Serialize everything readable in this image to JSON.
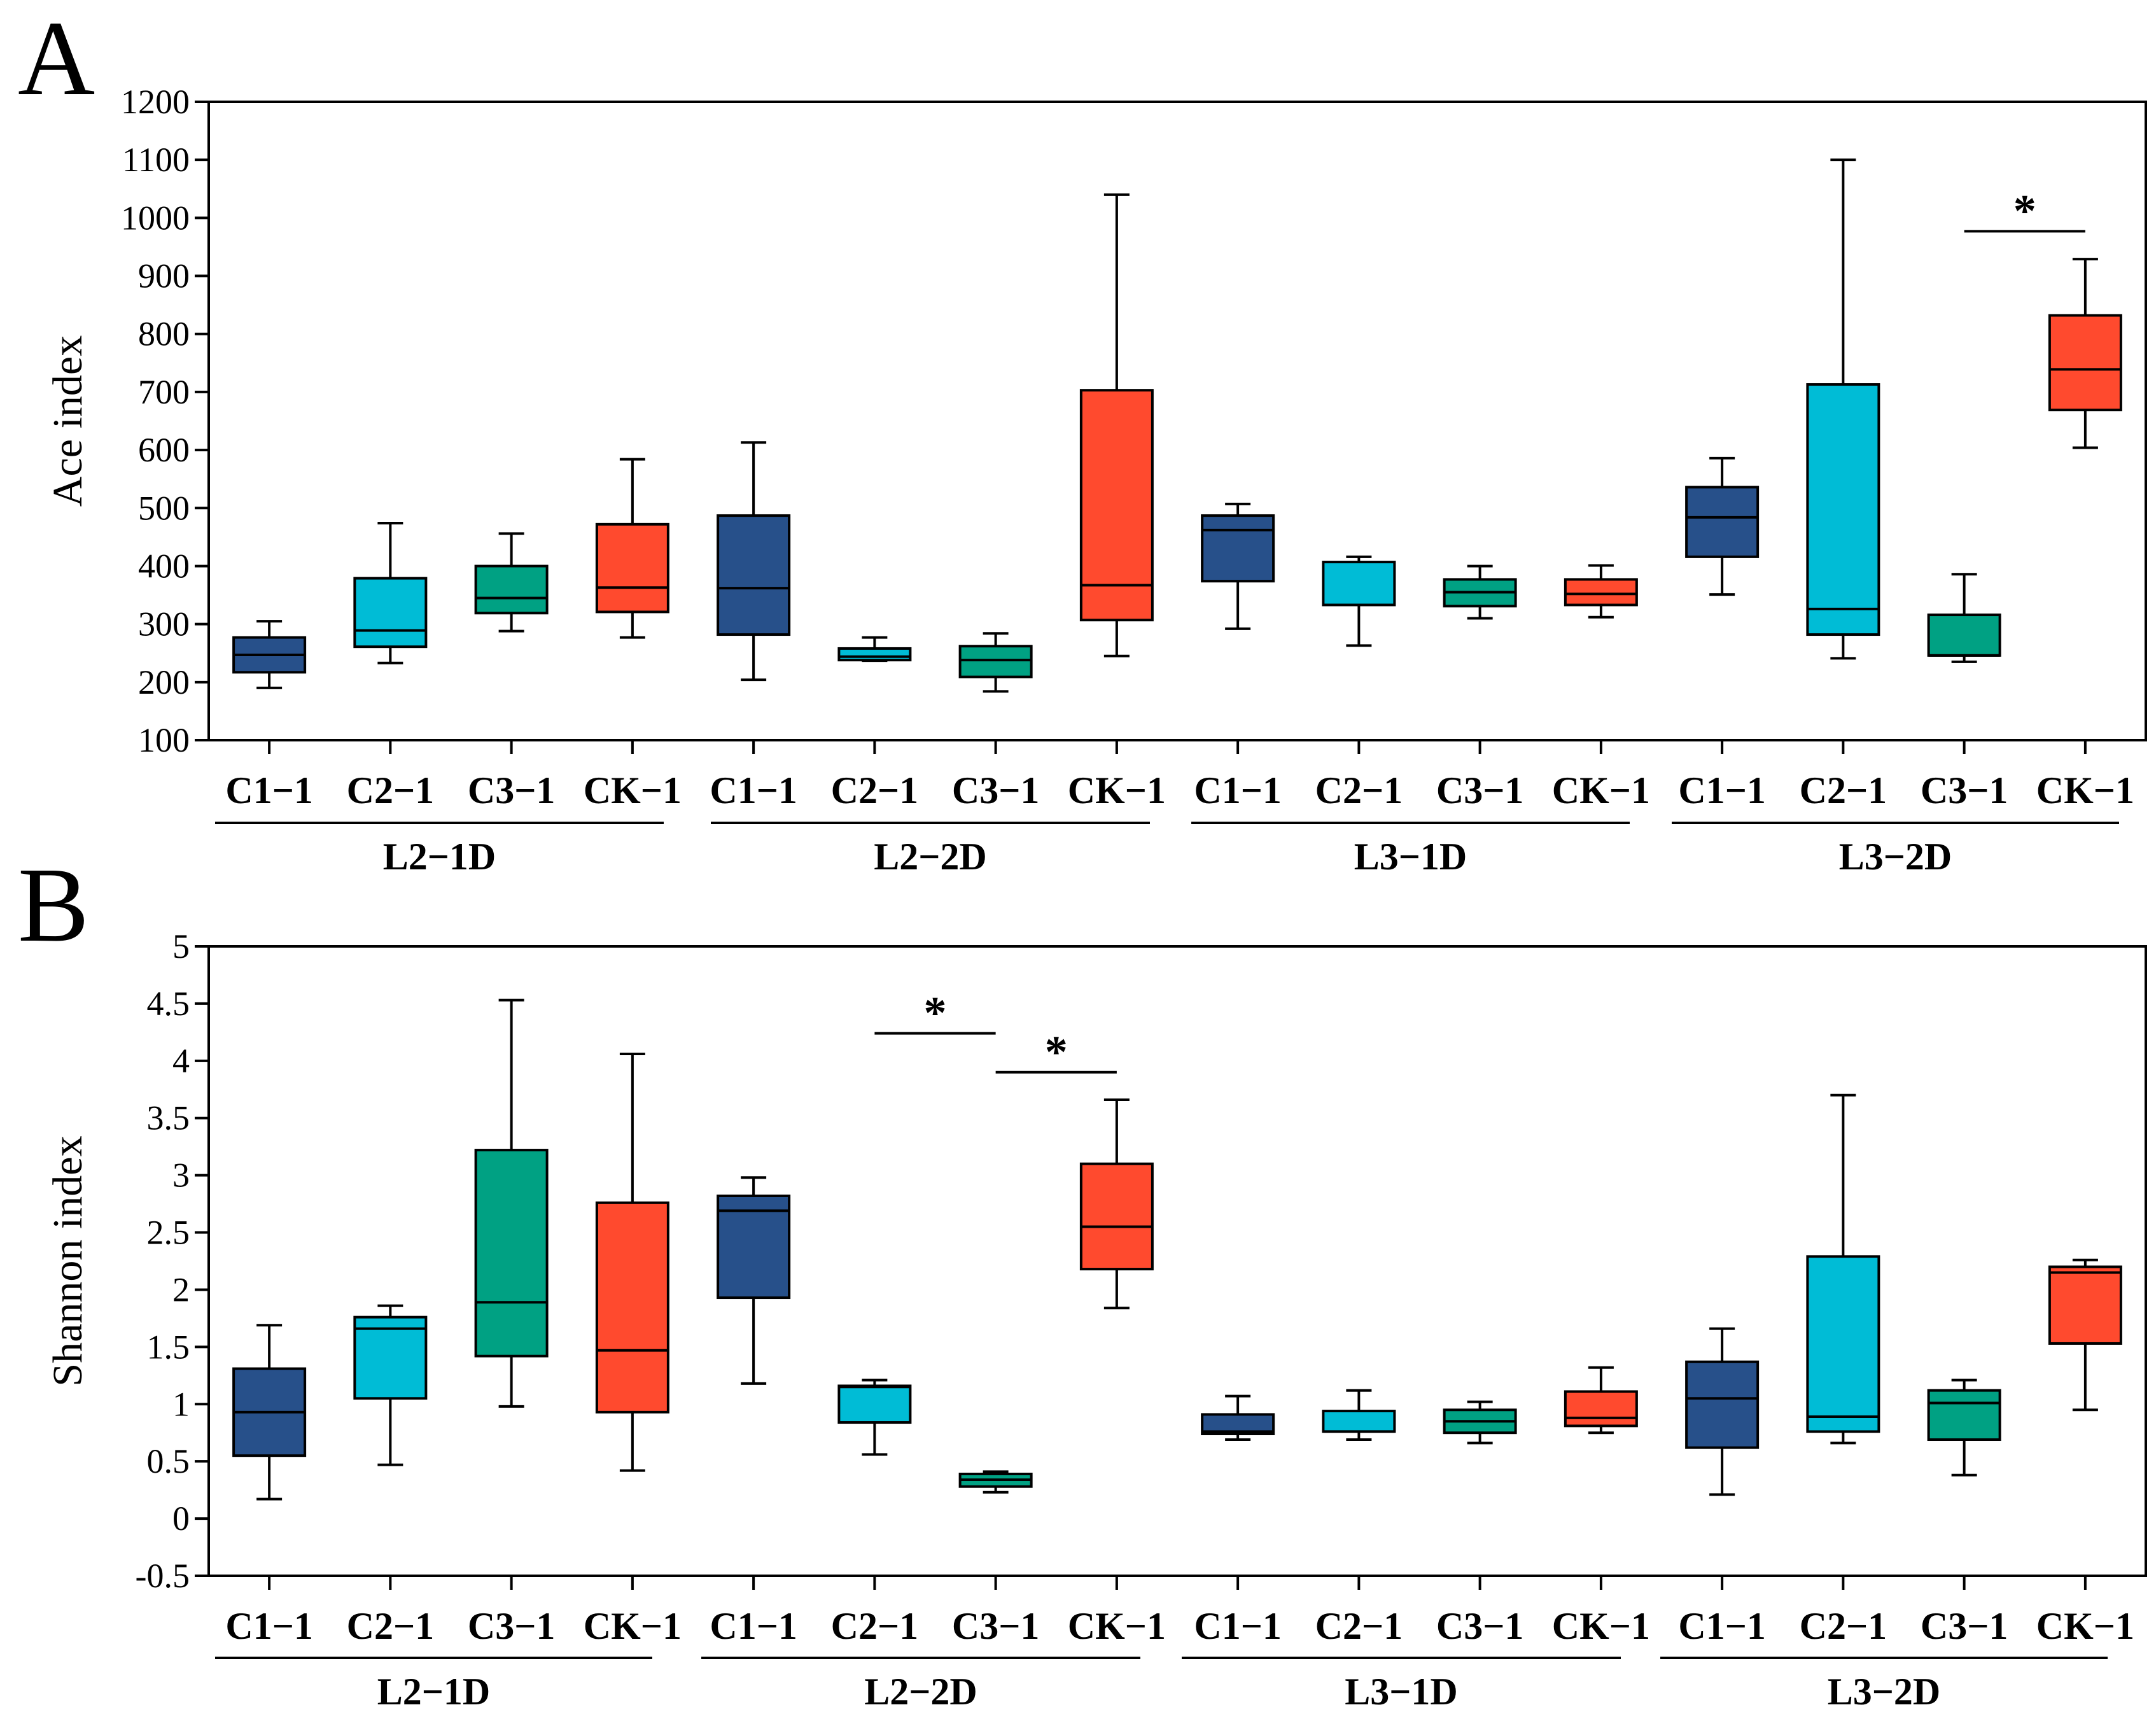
{
  "colors": {
    "C1-1": "#27508a",
    "C2-1": "#00bcd6",
    "C3-1": "#00a183",
    "CK-1": "#ff4a2e",
    "axis": "#000000"
  },
  "chart_data": [
    {
      "type": "boxplot",
      "panel": "A",
      "ylabel": "Ace index",
      "ylim": [
        100,
        1200
      ],
      "yticks": [
        "100",
        "200",
        "300",
        "400",
        "500",
        "600",
        "700",
        "800",
        "900",
        "1000",
        "1100",
        "1200"
      ],
      "groups": [
        {
          "label": "L2−1D",
          "categories": [
            {
              "label": "C1−1",
              "treatment": "C1-1",
              "min": 190,
              "q1": 217,
              "median": 247,
              "q3": 277,
              "max": 305
            },
            {
              "label": "C2−1",
              "treatment": "C2-1",
              "min": 233,
              "q1": 261,
              "median": 289,
              "q3": 379,
              "max": 474
            },
            {
              "label": "C3−1",
              "treatment": "C3-1",
              "min": 288,
              "q1": 319,
              "median": 345,
              "q3": 400,
              "max": 456
            },
            {
              "label": "CK−1",
              "treatment": "CK-1",
              "min": 277,
              "q1": 321,
              "median": 363,
              "q3": 472,
              "max": 584
            }
          ]
        },
        {
          "label": "L2−2D",
          "categories": [
            {
              "label": "C1−1",
              "treatment": "C1-1",
              "min": 204,
              "q1": 282,
              "median": 362,
              "q3": 487,
              "max": 613
            },
            {
              "label": "C2−1",
              "treatment": "C2-1",
              "min": 237,
              "q1": 238,
              "median": 244,
              "q3": 258,
              "max": 277
            },
            {
              "label": "C3−1",
              "treatment": "C3-1",
              "min": 184,
              "q1": 209,
              "median": 238,
              "q3": 262,
              "max": 284
            },
            {
              "label": "CK−1",
              "treatment": "CK-1",
              "min": 245,
              "q1": 307,
              "median": 367,
              "q3": 703,
              "max": 1040
            }
          ]
        },
        {
          "label": "L3−1D",
          "categories": [
            {
              "label": "C1−1",
              "treatment": "C1-1",
              "min": 292,
              "q1": 374,
              "median": 462,
              "q3": 487,
              "max": 507
            },
            {
              "label": "C2−1",
              "treatment": "C2-1",
              "min": 263,
              "q1": 333,
              "median": 333,
              "q3": 407,
              "max": 416
            },
            {
              "label": "C3−1",
              "treatment": "C3-1",
              "min": 310,
              "q1": 331,
              "median": 355,
              "q3": 377,
              "max": 400
            },
            {
              "label": "CK−1",
              "treatment": "CK-1",
              "min": 312,
              "q1": 333,
              "median": 352,
              "q3": 377,
              "max": 401
            }
          ]
        },
        {
          "label": "L3−2D",
          "categories": [
            {
              "label": "C1−1",
              "treatment": "C1-1",
              "min": 351,
              "q1": 416,
              "median": 484,
              "q3": 536,
              "max": 586
            },
            {
              "label": "C2−1",
              "treatment": "C2-1",
              "min": 241,
              "q1": 282,
              "median": 326,
              "q3": 713,
              "max": 1100
            },
            {
              "label": "C3−1",
              "treatment": "C3-1",
              "min": 235,
              "q1": 246,
              "median": 246,
              "q3": 316,
              "max": 386
            },
            {
              "label": "CK−1",
              "treatment": "CK-1",
              "min": 604,
              "q1": 669,
              "median": 739,
              "q3": 832,
              "max": 929
            }
          ]
        }
      ],
      "significance": [
        {
          "group": 3,
          "from": 2,
          "to": 3,
          "y": 977,
          "label": "*"
        }
      ]
    },
    {
      "type": "boxplot",
      "panel": "B",
      "ylabel": "Shannon index",
      "ylim": [
        -0.5,
        5
      ],
      "yticks": [
        "-0.5",
        "0",
        "0.5",
        "1",
        "1.5",
        "2",
        "2.5",
        "3",
        "3.5",
        "4",
        "4.5",
        "5"
      ],
      "groups": [
        {
          "label": "L2−1D",
          "categories": [
            {
              "label": "C1−1",
              "treatment": "C1-1",
              "min": 0.17,
              "q1": 0.55,
              "median": 0.93,
              "q3": 1.31,
              "max": 1.69
            },
            {
              "label": "C2−1",
              "treatment": "C2-1",
              "min": 0.47,
              "q1": 1.05,
              "median": 1.66,
              "q3": 1.76,
              "max": 1.86
            },
            {
              "label": "C3−1",
              "treatment": "C3-1",
              "min": 0.98,
              "q1": 1.42,
              "median": 1.89,
              "q3": 3.22,
              "max": 4.53
            },
            {
              "label": "CK−1",
              "treatment": "CK-1",
              "min": 0.42,
              "q1": 0.93,
              "median": 1.47,
              "q3": 2.76,
              "max": 4.06
            }
          ]
        },
        {
          "label": "L2−2D",
          "categories": [
            {
              "label": "C1−1",
              "treatment": "C1-1",
              "min": 1.18,
              "q1": 1.93,
              "median": 2.69,
              "q3": 2.82,
              "max": 2.98
            },
            {
              "label": "C2−1",
              "treatment": "C2-1",
              "min": 0.56,
              "q1": 0.84,
              "median": 1.15,
              "q3": 1.16,
              "max": 1.21
            },
            {
              "label": "C3−1",
              "treatment": "C3-1",
              "min": 0.23,
              "q1": 0.28,
              "median": 0.34,
              "q3": 0.39,
              "max": 0.41
            },
            {
              "label": "CK−1",
              "treatment": "CK-1",
              "min": 1.84,
              "q1": 2.18,
              "median": 2.55,
              "q3": 3.1,
              "max": 3.66
            }
          ]
        },
        {
          "label": "L3−1D",
          "categories": [
            {
              "label": "C1−1",
              "treatment": "C1-1",
              "min": 0.69,
              "q1": 0.74,
              "median": 0.76,
              "q3": 0.91,
              "max": 1.07
            },
            {
              "label": "C2−1",
              "treatment": "C2-1",
              "min": 0.69,
              "q1": 0.76,
              "median": 0.76,
              "q3": 0.94,
              "max": 1.12
            },
            {
              "label": "C3−1",
              "treatment": "C3-1",
              "min": 0.66,
              "q1": 0.75,
              "median": 0.85,
              "q3": 0.95,
              "max": 1.02
            },
            {
              "label": "CK−1",
              "treatment": "CK-1",
              "min": 0.75,
              "q1": 0.81,
              "median": 0.88,
              "q3": 1.11,
              "max": 1.32
            }
          ]
        },
        {
          "label": "L3−2D",
          "categories": [
            {
              "label": "C1−1",
              "treatment": "C1-1",
              "min": 0.21,
              "q1": 0.62,
              "median": 1.05,
              "q3": 1.37,
              "max": 1.66
            },
            {
              "label": "C2−1",
              "treatment": "C2-1",
              "min": 0.66,
              "q1": 0.76,
              "median": 0.89,
              "q3": 2.29,
              "max": 3.7
            },
            {
              "label": "C3−1",
              "treatment": "C3-1",
              "min": 0.38,
              "q1": 0.69,
              "median": 1.01,
              "q3": 1.12,
              "max": 1.21
            },
            {
              "label": "CK−1",
              "treatment": "CK-1",
              "min": 0.95,
              "q1": 1.53,
              "median": 2.15,
              "q3": 2.2,
              "max": 2.26
            }
          ]
        }
      ],
      "significance": [
        {
          "group": 1,
          "from": 1,
          "to": 2,
          "y": 4.24,
          "label": "*"
        },
        {
          "group": 1,
          "from": 2,
          "to": 3,
          "y": 3.9,
          "label": "*"
        }
      ]
    }
  ]
}
